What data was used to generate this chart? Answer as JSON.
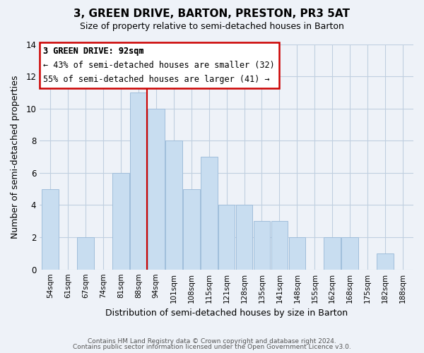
{
  "title": "3, GREEN DRIVE, BARTON, PRESTON, PR3 5AT",
  "subtitle": "Size of property relative to semi-detached houses in Barton",
  "xlabel": "Distribution of semi-detached houses by size in Barton",
  "ylabel": "Number of semi-detached properties",
  "bins": [
    "54sqm",
    "61sqm",
    "67sqm",
    "74sqm",
    "81sqm",
    "88sqm",
    "94sqm",
    "101sqm",
    "108sqm",
    "115sqm",
    "121sqm",
    "128sqm",
    "135sqm",
    "141sqm",
    "148sqm",
    "155sqm",
    "162sqm",
    "168sqm",
    "175sqm",
    "182sqm",
    "188sqm"
  ],
  "values": [
    5,
    0,
    2,
    0,
    6,
    11,
    10,
    8,
    5,
    7,
    4,
    4,
    3,
    3,
    2,
    0,
    2,
    2,
    0,
    1,
    0
  ],
  "red_line_x": 5.5,
  "bar_color": "#c8ddf0",
  "bar_edge_color": "#a0bedb",
  "red_line_color": "#cc0000",
  "ylim": [
    0,
    14
  ],
  "yticks": [
    0,
    2,
    4,
    6,
    8,
    10,
    12,
    14
  ],
  "annotation_title": "3 GREEN DRIVE: 92sqm",
  "annotation_line1": "← 43% of semi-detached houses are smaller (32)",
  "annotation_line2": "55% of semi-detached houses are larger (41) →",
  "annotation_box_color": "#ffffff",
  "annotation_box_edge_color": "#cc0000",
  "footer_line1": "Contains HM Land Registry data © Crown copyright and database right 2024.",
  "footer_line2": "Contains public sector information licensed under the Open Government Licence v3.0.",
  "background_color": "#eef2f8",
  "grid_color": "#c0cfe0",
  "title_fontsize": 11,
  "subtitle_fontsize": 9
}
